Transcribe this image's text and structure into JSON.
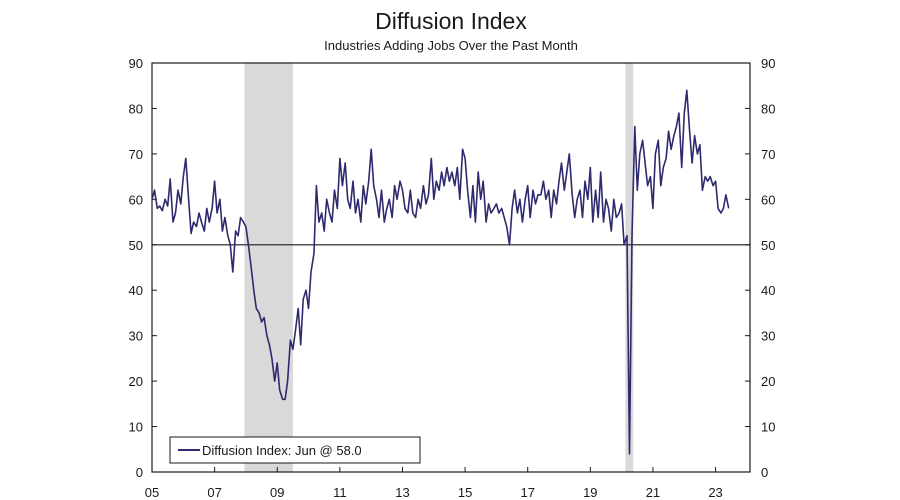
{
  "chart_data": {
    "type": "line",
    "title": "Diffusion Index",
    "subtitle": "Industries Adding Jobs Over the Past Month",
    "legend": {
      "label": "Diffusion Index: Jun @ 58.0",
      "placement": "bottom-left"
    },
    "line_color": "#2e2a6e",
    "shade_color": "#d9d9d9",
    "ylim": [
      0,
      90
    ],
    "y_ticks": [
      "0",
      "10",
      "20",
      "30",
      "40",
      "50",
      "60",
      "70",
      "80",
      "90"
    ],
    "x_range": [
      2005.0,
      2024.1
    ],
    "x_ticks": [
      {
        "label": "05",
        "x": 2005.0
      },
      {
        "label": "07",
        "x": 2007.0
      },
      {
        "label": "09",
        "x": 2009.0
      },
      {
        "label": "11",
        "x": 2011.0
      },
      {
        "label": "13",
        "x": 2013.0
      },
      {
        "label": "15",
        "x": 2015.0
      },
      {
        "label": "17",
        "x": 2017.0
      },
      {
        "label": "19",
        "x": 2019.0
      },
      {
        "label": "21",
        "x": 2021.0
      },
      {
        "label": "23",
        "x": 2023.0
      }
    ],
    "reference_line": 50,
    "grid": false,
    "recessions": [
      {
        "start": 2007.95,
        "end": 2009.5
      },
      {
        "start": 2020.12,
        "end": 2020.37
      }
    ],
    "series": [
      {
        "points": [
          [
            2005.0,
            60
          ],
          [
            2005.08,
            62
          ],
          [
            2005.17,
            58
          ],
          [
            2005.25,
            58.5
          ],
          [
            2005.33,
            57.5
          ],
          [
            2005.42,
            60
          ],
          [
            2005.5,
            58.5
          ],
          [
            2005.58,
            64.5
          ],
          [
            2005.67,
            55
          ],
          [
            2005.75,
            57
          ],
          [
            2005.83,
            62
          ],
          [
            2005.92,
            59
          ],
          [
            2006.0,
            65
          ],
          [
            2006.08,
            69
          ],
          [
            2006.17,
            60
          ],
          [
            2006.25,
            52.5
          ],
          [
            2006.33,
            55
          ],
          [
            2006.42,
            54
          ],
          [
            2006.5,
            57
          ],
          [
            2006.58,
            55
          ],
          [
            2006.67,
            53
          ],
          [
            2006.75,
            58
          ],
          [
            2006.83,
            55
          ],
          [
            2006.92,
            58
          ],
          [
            2007.0,
            64
          ],
          [
            2007.08,
            57
          ],
          [
            2007.17,
            60
          ],
          [
            2007.25,
            53
          ],
          [
            2007.33,
            56
          ],
          [
            2007.42,
            52
          ],
          [
            2007.5,
            50
          ],
          [
            2007.58,
            44
          ],
          [
            2007.67,
            53
          ],
          [
            2007.75,
            52
          ],
          [
            2007.83,
            56
          ],
          [
            2007.92,
            55
          ],
          [
            2008.0,
            54
          ],
          [
            2008.08,
            50
          ],
          [
            2008.17,
            45
          ],
          [
            2008.25,
            40
          ],
          [
            2008.33,
            36
          ],
          [
            2008.42,
            35
          ],
          [
            2008.5,
            33
          ],
          [
            2008.58,
            34
          ],
          [
            2008.67,
            30
          ],
          [
            2008.75,
            28
          ],
          [
            2008.83,
            25
          ],
          [
            2008.92,
            20
          ],
          [
            2009.0,
            24
          ],
          [
            2009.08,
            18
          ],
          [
            2009.17,
            16
          ],
          [
            2009.25,
            16
          ],
          [
            2009.33,
            20
          ],
          [
            2009.42,
            29
          ],
          [
            2009.5,
            27
          ],
          [
            2009.58,
            31
          ],
          [
            2009.67,
            36
          ],
          [
            2009.75,
            28
          ],
          [
            2009.83,
            38
          ],
          [
            2009.92,
            40
          ],
          [
            2010.0,
            36
          ],
          [
            2010.08,
            44
          ],
          [
            2010.17,
            48
          ],
          [
            2010.25,
            63
          ],
          [
            2010.33,
            55
          ],
          [
            2010.42,
            57
          ],
          [
            2010.5,
            53
          ],
          [
            2010.58,
            60
          ],
          [
            2010.67,
            57
          ],
          [
            2010.75,
            55
          ],
          [
            2010.83,
            62
          ],
          [
            2010.92,
            58
          ],
          [
            2011.0,
            69
          ],
          [
            2011.08,
            63
          ],
          [
            2011.17,
            68
          ],
          [
            2011.25,
            60
          ],
          [
            2011.33,
            58
          ],
          [
            2011.42,
            64
          ],
          [
            2011.5,
            57
          ],
          [
            2011.58,
            60
          ],
          [
            2011.67,
            55
          ],
          [
            2011.75,
            63
          ],
          [
            2011.83,
            59
          ],
          [
            2011.92,
            64
          ],
          [
            2012.0,
            71
          ],
          [
            2012.08,
            63
          ],
          [
            2012.17,
            60
          ],
          [
            2012.25,
            56
          ],
          [
            2012.33,
            62
          ],
          [
            2012.42,
            55
          ],
          [
            2012.5,
            58
          ],
          [
            2012.58,
            60
          ],
          [
            2012.67,
            56
          ],
          [
            2012.75,
            63
          ],
          [
            2012.83,
            60
          ],
          [
            2012.92,
            64
          ],
          [
            2013.0,
            62
          ],
          [
            2013.08,
            58
          ],
          [
            2013.17,
            57
          ],
          [
            2013.25,
            62
          ],
          [
            2013.33,
            57
          ],
          [
            2013.42,
            56
          ],
          [
            2013.5,
            60
          ],
          [
            2013.58,
            58
          ],
          [
            2013.67,
            63
          ],
          [
            2013.75,
            59
          ],
          [
            2013.83,
            61
          ],
          [
            2013.92,
            69
          ],
          [
            2014.0,
            60
          ],
          [
            2014.08,
            64
          ],
          [
            2014.17,
            62
          ],
          [
            2014.25,
            66
          ],
          [
            2014.33,
            63
          ],
          [
            2014.42,
            67
          ],
          [
            2014.5,
            64
          ],
          [
            2014.58,
            66
          ],
          [
            2014.67,
            63
          ],
          [
            2014.75,
            67
          ],
          [
            2014.83,
            60
          ],
          [
            2014.92,
            71
          ],
          [
            2015.0,
            69
          ],
          [
            2015.08,
            62
          ],
          [
            2015.17,
            56
          ],
          [
            2015.25,
            63
          ],
          [
            2015.33,
            55
          ],
          [
            2015.42,
            66
          ],
          [
            2015.5,
            60
          ],
          [
            2015.58,
            64
          ],
          [
            2015.67,
            55
          ],
          [
            2015.75,
            59
          ],
          [
            2015.83,
            57
          ],
          [
            2015.92,
            58
          ],
          [
            2016.0,
            59
          ],
          [
            2016.08,
            57
          ],
          [
            2016.17,
            58
          ],
          [
            2016.25,
            56
          ],
          [
            2016.33,
            54
          ],
          [
            2016.42,
            50
          ],
          [
            2016.5,
            58
          ],
          [
            2016.58,
            62
          ],
          [
            2016.67,
            57
          ],
          [
            2016.75,
            60
          ],
          [
            2016.83,
            55
          ],
          [
            2016.92,
            60
          ],
          [
            2017.0,
            63
          ],
          [
            2017.08,
            56
          ],
          [
            2017.17,
            62
          ],
          [
            2017.25,
            59
          ],
          [
            2017.33,
            61
          ],
          [
            2017.42,
            61
          ],
          [
            2017.5,
            64
          ],
          [
            2017.58,
            60
          ],
          [
            2017.67,
            62
          ],
          [
            2017.75,
            56
          ],
          [
            2017.83,
            62
          ],
          [
            2017.92,
            59
          ],
          [
            2018.0,
            64
          ],
          [
            2018.08,
            68
          ],
          [
            2018.17,
            62
          ],
          [
            2018.25,
            66
          ],
          [
            2018.33,
            70
          ],
          [
            2018.42,
            61
          ],
          [
            2018.5,
            56
          ],
          [
            2018.58,
            60
          ],
          [
            2018.67,
            62
          ],
          [
            2018.75,
            56
          ],
          [
            2018.83,
            64
          ],
          [
            2018.92,
            60
          ],
          [
            2019.0,
            67
          ],
          [
            2019.08,
            55
          ],
          [
            2019.17,
            62
          ],
          [
            2019.25,
            56
          ],
          [
            2019.33,
            66
          ],
          [
            2019.42,
            55
          ],
          [
            2019.5,
            60
          ],
          [
            2019.58,
            58
          ],
          [
            2019.67,
            53
          ],
          [
            2019.75,
            60
          ],
          [
            2019.83,
            56
          ],
          [
            2019.92,
            57
          ],
          [
            2020.0,
            59
          ],
          [
            2020.08,
            50
          ],
          [
            2020.17,
            52
          ],
          [
            2020.25,
            4
          ],
          [
            2020.33,
            52
          ],
          [
            2020.42,
            76
          ],
          [
            2020.5,
            62
          ],
          [
            2020.58,
            70
          ],
          [
            2020.67,
            73
          ],
          [
            2020.75,
            68
          ],
          [
            2020.83,
            63
          ],
          [
            2020.92,
            65
          ],
          [
            2021.0,
            58
          ],
          [
            2021.08,
            70
          ],
          [
            2021.17,
            73
          ],
          [
            2021.25,
            63
          ],
          [
            2021.33,
            67
          ],
          [
            2021.42,
            69
          ],
          [
            2021.5,
            75
          ],
          [
            2021.58,
            71
          ],
          [
            2021.67,
            74
          ],
          [
            2021.75,
            76
          ],
          [
            2021.83,
            79
          ],
          [
            2021.92,
            67
          ],
          [
            2022.0,
            79
          ],
          [
            2022.08,
            84
          ],
          [
            2022.17,
            75
          ],
          [
            2022.25,
            68
          ],
          [
            2022.33,
            74
          ],
          [
            2022.42,
            70
          ],
          [
            2022.5,
            72
          ],
          [
            2022.58,
            62
          ],
          [
            2022.67,
            65
          ],
          [
            2022.75,
            64
          ],
          [
            2022.83,
            65
          ],
          [
            2022.92,
            63
          ],
          [
            2023.0,
            64
          ],
          [
            2023.08,
            58
          ],
          [
            2023.17,
            57
          ],
          [
            2023.25,
            58
          ],
          [
            2023.33,
            61
          ],
          [
            2023.42,
            58
          ]
        ]
      }
    ]
  }
}
